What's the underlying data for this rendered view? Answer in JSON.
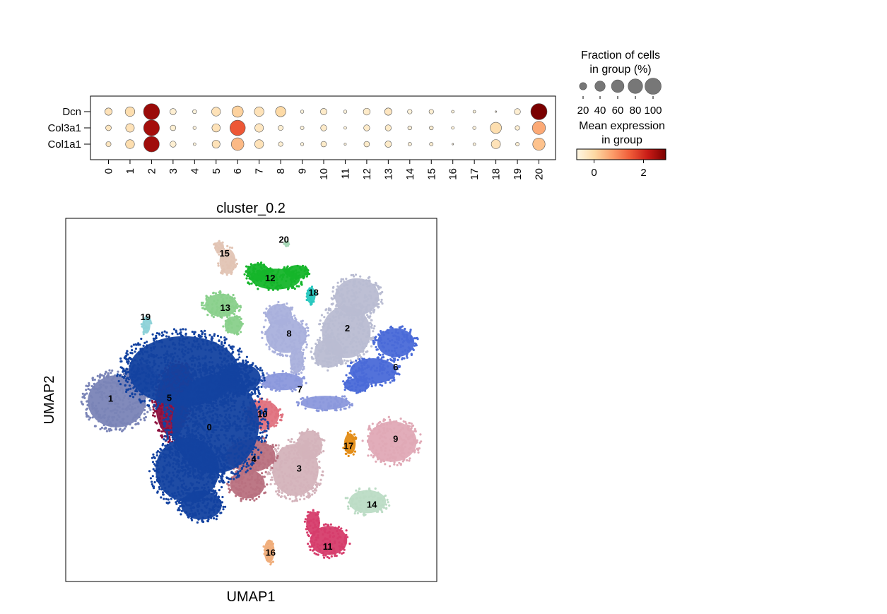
{
  "chart_data": [
    {
      "type": "dotplot",
      "genes": [
        "Dcn",
        "Col3a1",
        "Col1a1"
      ],
      "clusters": [
        "0",
        "1",
        "2",
        "3",
        "4",
        "5",
        "6",
        "7",
        "8",
        "9",
        "10",
        "11",
        "12",
        "13",
        "14",
        "15",
        "16",
        "17",
        "18",
        "19",
        "20"
      ],
      "fraction_pct": [
        [
          20,
          35,
          98,
          15,
          6,
          30,
          48,
          35,
          40,
          4,
          16,
          4,
          18,
          20,
          8,
          8,
          3,
          3,
          1,
          14,
          100
        ],
        [
          12,
          28,
          95,
          12,
          4,
          26,
          90,
          28,
          10,
          5,
          14,
          3,
          14,
          14,
          6,
          6,
          3,
          4,
          48,
          8,
          65
        ],
        [
          10,
          30,
          92,
          14,
          3,
          24,
          60,
          30,
          8,
          4,
          12,
          2,
          12,
          16,
          5,
          5,
          1,
          3,
          32,
          5,
          58
        ]
      ],
      "mean_expression": [
        [
          -0.2,
          -0.1,
          2.6,
          -0.5,
          -0.6,
          -0.2,
          0.1,
          -0.2,
          0.0,
          -0.6,
          -0.4,
          -0.6,
          -0.4,
          -0.3,
          -0.6,
          -0.5,
          -0.6,
          -0.6,
          -0.6,
          -0.5,
          2.9
        ],
        [
          -0.3,
          -0.2,
          2.5,
          -0.5,
          -0.6,
          -0.2,
          1.5,
          -0.3,
          -0.5,
          -0.6,
          -0.4,
          -0.6,
          -0.4,
          -0.4,
          -0.6,
          -0.5,
          -0.6,
          -0.6,
          -0.1,
          -0.5,
          0.6
        ],
        [
          -0.3,
          -0.1,
          2.55,
          -0.5,
          -0.6,
          -0.2,
          0.4,
          -0.2,
          -0.5,
          -0.6,
          -0.4,
          -0.6,
          -0.4,
          -0.4,
          -0.6,
          -0.5,
          -0.6,
          -0.6,
          -0.2,
          -0.5,
          0.3
        ]
      ],
      "size_legend": {
        "title_line1": "Fraction of cells",
        "title_line2": "in group (%)",
        "values": [
          20,
          40,
          60,
          80,
          100
        ],
        "labels": [
          "20",
          "40",
          "60",
          "80",
          "100"
        ]
      },
      "color_legend": {
        "title_line1": "Mean expression",
        "title_line2": "in group",
        "range": [
          -0.7,
          2.9
        ],
        "ticks": [
          0,
          2
        ],
        "tick_labels": [
          "0",
          "2"
        ],
        "colormap": "Reds/OrRd"
      },
      "dot_color_scale": [
        "#fff7e4",
        "#fdd9a4",
        "#fc9d6a",
        "#ef5b38",
        "#c81b16",
        "#7a0000"
      ]
    },
    {
      "type": "scatter",
      "title": "cluster_0.2",
      "xlabel": "UMAP1",
      "ylabel": "UMAP2",
      "clusters": [
        {
          "id": "0",
          "color": "#1342a0",
          "lx": 0.387,
          "ly": 0.574
        },
        {
          "id": "1",
          "color": "#7a84b7",
          "lx": 0.121,
          "ly": 0.495
        },
        {
          "id": "2",
          "color": "#b9bcd2",
          "lx": 0.759,
          "ly": 0.302
        },
        {
          "id": "3",
          "color": "#d4b3bb",
          "lx": 0.629,
          "ly": 0.688
        },
        {
          "id": "4",
          "color": "#b97180",
          "lx": 0.507,
          "ly": 0.661
        },
        {
          "id": "5",
          "color": "#8c0f3d",
          "lx": 0.279,
          "ly": 0.493
        },
        {
          "id": "6",
          "color": "#4a6ad8",
          "lx": 0.889,
          "ly": 0.409
        },
        {
          "id": "7",
          "color": "#8b98dc",
          "lx": 0.631,
          "ly": 0.47
        },
        {
          "id": "8",
          "color": "#a9b0dc",
          "lx": 0.602,
          "ly": 0.316
        },
        {
          "id": "9",
          "color": "#e0a9b6",
          "lx": 0.889,
          "ly": 0.606
        },
        {
          "id": "10",
          "color": "#e0727f",
          "lx": 0.53,
          "ly": 0.538
        },
        {
          "id": "11",
          "color": "#d63d6c",
          "lx": 0.706,
          "ly": 0.903
        },
        {
          "id": "12",
          "color": "#15b52a",
          "lx": 0.551,
          "ly": 0.163
        },
        {
          "id": "13",
          "color": "#89d08b",
          "lx": 0.43,
          "ly": 0.245
        },
        {
          "id": "14",
          "color": "#bcdcc5",
          "lx": 0.825,
          "ly": 0.787
        },
        {
          "id": "15",
          "color": "#e2c4b4",
          "lx": 0.428,
          "ly": 0.095
        },
        {
          "id": "16",
          "color": "#f0ad7a",
          "lx": 0.552,
          "ly": 0.919
        },
        {
          "id": "17",
          "color": "#e38c15",
          "lx": 0.762,
          "ly": 0.625
        },
        {
          "id": "18",
          "color": "#28c8bf",
          "lx": 0.668,
          "ly": 0.203
        },
        {
          "id": "19",
          "color": "#8ed2d8",
          "lx": 0.215,
          "ly": 0.27
        },
        {
          "id": "20",
          "color": "#a8d8b8",
          "lx": 0.588,
          "ly": 0.057
        }
      ]
    }
  ]
}
